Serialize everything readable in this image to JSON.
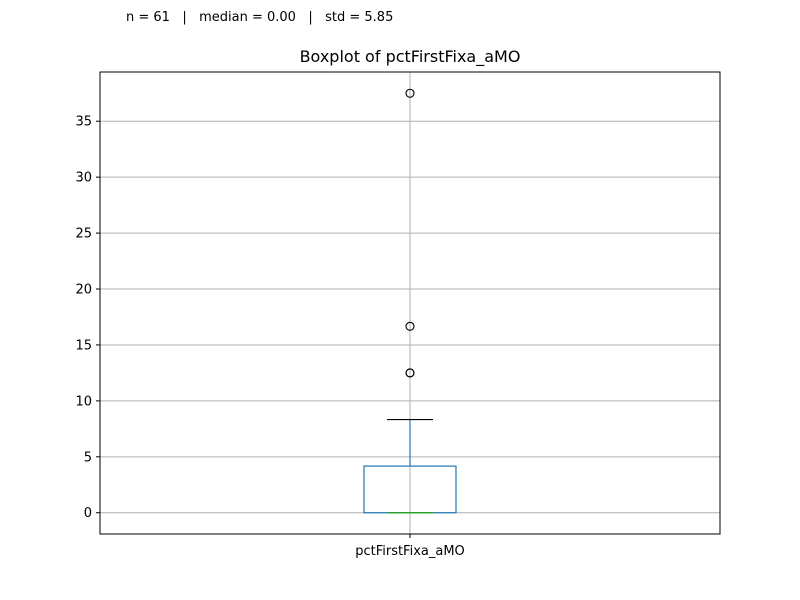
{
  "summary": "n = 61   |   median = 0.00   |   std = 5.85",
  "chart_data": {
    "type": "box",
    "title": "Boxplot of pctFirstFixa_aMO",
    "categories": [
      "pctFirstFixa_aMO"
    ],
    "ylim": [
      -1.9,
      39.4
    ],
    "yticks": [
      0,
      5,
      10,
      15,
      20,
      25,
      30,
      35
    ],
    "grid": true,
    "box": {
      "q1": 0.0,
      "median": 0.0,
      "q3": 4.17,
      "whisker_low": 0.0,
      "whisker_high": 8.33,
      "outliers": [
        12.5,
        12.5,
        16.67,
        37.5
      ]
    },
    "colors": {
      "box": "#1f77b4",
      "median": "#2ca02c",
      "whisker_cap": "#000000",
      "grid": "#b0b0b0"
    }
  }
}
